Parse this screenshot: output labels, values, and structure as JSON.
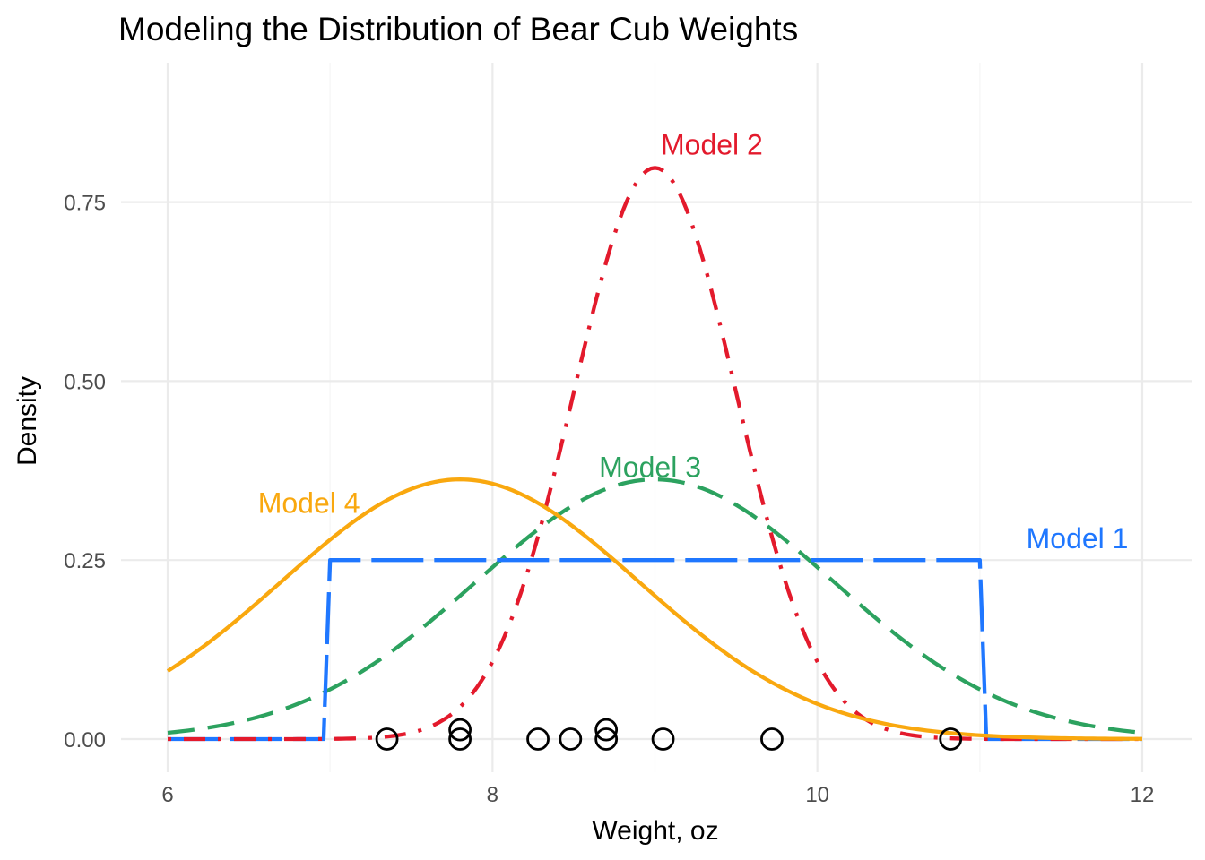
{
  "chart_data": {
    "type": "line",
    "title": "Modeling the Distribution of Bear Cub Weights",
    "xlabel": "Weight, oz",
    "ylabel": "Density",
    "xlim": [
      6,
      12
    ],
    "ylim": [
      0,
      0.9
    ],
    "x_ticks": [
      6,
      8,
      10,
      12
    ],
    "x_tick_labels": [
      "6",
      "8",
      "10",
      "12"
    ],
    "y_ticks": [
      0,
      0.25,
      0.5,
      0.75
    ],
    "y_tick_labels": [
      "0.00",
      "0.25",
      "0.50",
      "0.75"
    ],
    "grid": true,
    "legend": "none (direct labels)",
    "series": [
      {
        "name": "Model 1",
        "distribution": "uniform",
        "min": 7,
        "max": 11,
        "color": "#1f77ff",
        "linestyle": "longdash"
      },
      {
        "name": "Model 2",
        "distribution": "normal",
        "mean": 9,
        "sd": 0.5,
        "color": "#e31a2c",
        "linestyle": "dotdash"
      },
      {
        "name": "Model 3",
        "distribution": "normal",
        "mean": 9,
        "sd": 1.1,
        "color": "#2ca25f",
        "linestyle": "dashed"
      },
      {
        "name": "Model 4",
        "distribution": "normal",
        "mean": 7.8,
        "sd": 1.1,
        "color": "#f9a80f",
        "linestyle": "solid"
      }
    ],
    "labels": [
      {
        "text": "Model 1",
        "x": 11.6,
        "y": 0.28
      },
      {
        "text": "Model 2",
        "x": 9.35,
        "y": 0.83
      },
      {
        "text": "Model 3",
        "x": 8.97,
        "y": 0.38
      },
      {
        "text": "Model 4",
        "x": 6.87,
        "y": 0.33
      }
    ],
    "observations": [
      {
        "x": 7.35,
        "y": 0
      },
      {
        "x": 7.8,
        "y": 0.013
      },
      {
        "x": 7.8,
        "y": 0
      },
      {
        "x": 8.28,
        "y": 0
      },
      {
        "x": 8.48,
        "y": 0
      },
      {
        "x": 8.7,
        "y": 0.013
      },
      {
        "x": 8.7,
        "y": 0
      },
      {
        "x": 9.05,
        "y": 0
      },
      {
        "x": 9.72,
        "y": 0
      },
      {
        "x": 10.82,
        "y": 0
      }
    ]
  }
}
